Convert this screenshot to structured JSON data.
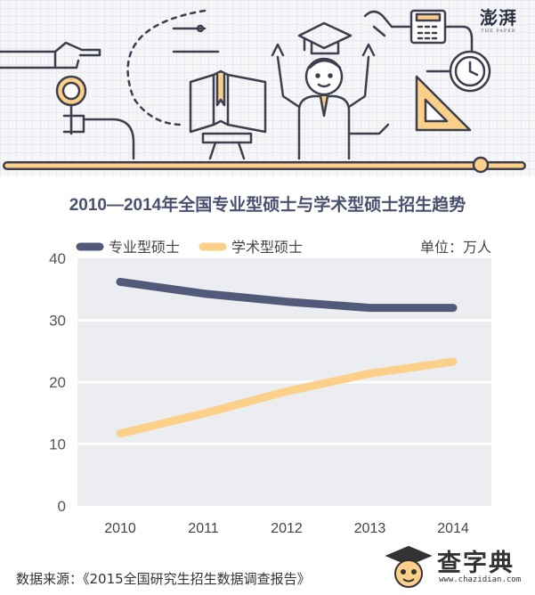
{
  "brand": {
    "name_cn": "澎湃",
    "name_en": "THE PAPER"
  },
  "footer": {
    "source": "数据来源：《2015全国研究生招生数据调查报告》"
  },
  "watermark": {
    "name_cn": "查字典",
    "url": "www.chazidian.com"
  },
  "colors": {
    "series_professional": "#525a7c",
    "series_academic": "#fdd08a",
    "plot_bg": "#ebedf1",
    "title": "#4a5070"
  },
  "icons": [
    "pointing-hand-icon",
    "magnifier-icon",
    "book-icon",
    "graduation-cap-icon",
    "teacher-figure-icon",
    "calculator-icon",
    "clock-icon",
    "set-square-icon",
    "wrench-hand-icon"
  ],
  "chart_data": {
    "type": "line",
    "title": "2010—2014年全国专业型硕士与学术型硕士招生趋势",
    "unit": "单位：万人",
    "categories": [
      "2010",
      "2011",
      "2012",
      "2013",
      "2014"
    ],
    "yticks": [
      "0",
      "10",
      "20",
      "30",
      "40"
    ],
    "ylim": [
      0,
      40
    ],
    "grid": true,
    "legend_position": "top-left",
    "series": [
      {
        "name": "专业型硕士",
        "values": [
          36.2,
          34.3,
          33.0,
          32.0,
          32.0
        ],
        "color": "#525a7c"
      },
      {
        "name": "学术型硕士",
        "values": [
          11.7,
          14.9,
          18.5,
          21.4,
          23.3
        ],
        "color": "#fdd08a"
      }
    ]
  }
}
